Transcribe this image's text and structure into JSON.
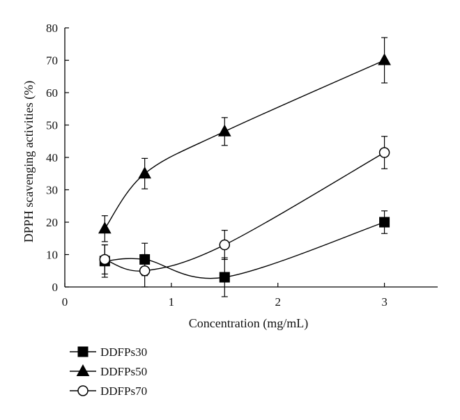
{
  "chart_data": {
    "type": "line",
    "xlabel": "Concentration (mg/mL)",
    "ylabel": "DPPH scavenging activities (%)",
    "xlim": [
      0,
      3.5
    ],
    "ylim": [
      0,
      80
    ],
    "x_ticks": [
      "0",
      "1",
      "2",
      "3"
    ],
    "y_ticks": [
      "0",
      "10",
      "20",
      "30",
      "40",
      "50",
      "60",
      "70",
      "80"
    ],
    "grid": false,
    "legend_position": "below-left",
    "x": [
      0.375,
      0.75,
      1.5,
      3
    ],
    "series": [
      {
        "name": "DDFPs30",
        "marker": "square-filled",
        "values": [
          8,
          8.5,
          3,
          20
        ],
        "errors": [
          5,
          5,
          6,
          3.5
        ]
      },
      {
        "name": "DDFPs50",
        "marker": "triangle-filled",
        "values": [
          18,
          35,
          48,
          70
        ],
        "errors": [
          4,
          4.7,
          4.3,
          7
        ]
      },
      {
        "name": "DDFPs70",
        "marker": "circle-open",
        "values": [
          8.5,
          5,
          13,
          41.5
        ],
        "errors": [
          4.5,
          5,
          4.5,
          5
        ]
      }
    ],
    "colors": {
      "line": "#000000",
      "axis": "#000000"
    }
  }
}
